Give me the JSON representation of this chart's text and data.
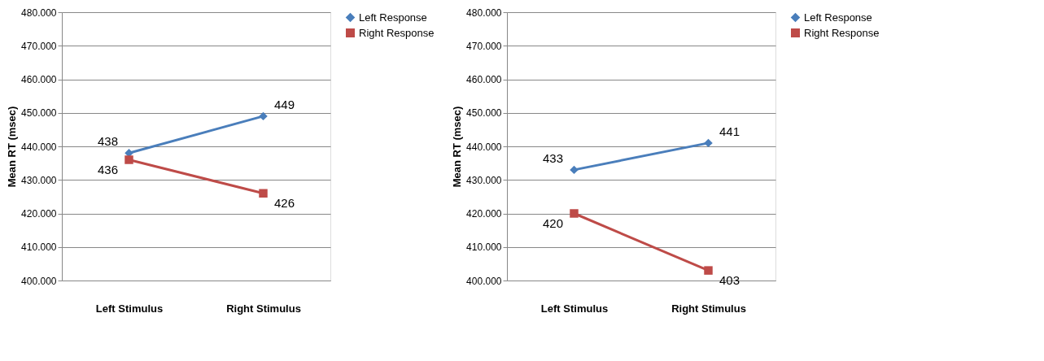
{
  "chart_data": [
    {
      "type": "line",
      "ylabel": "Mean RT (msec)",
      "categories": [
        "Left Stimulus",
        "Right Stimulus"
      ],
      "series": [
        {
          "name": "Left Response",
          "color": "#4a7ebb",
          "marker": "diamond",
          "values": [
            438,
            449
          ]
        },
        {
          "name": "Right Response",
          "color": "#be4b48",
          "marker": "square",
          "values": [
            436,
            426
          ]
        }
      ],
      "ylim": [
        400,
        480
      ],
      "yticks": [
        {
          "value": 400,
          "label": "400.000"
        },
        {
          "value": 410,
          "label": "410.000"
        },
        {
          "value": 420,
          "label": "420.000"
        },
        {
          "value": 430,
          "label": "430.000"
        },
        {
          "value": 440,
          "label": "440.000"
        },
        {
          "value": 450,
          "label": "450.000"
        },
        {
          "value": 460,
          "label": "460.000"
        },
        {
          "value": 470,
          "label": "470.000"
        },
        {
          "value": 480,
          "label": "480.000"
        }
      ],
      "grid": "y",
      "legend": "right",
      "data_labels": true
    },
    {
      "type": "line",
      "ylabel": "Mean RT (msec)",
      "categories": [
        "Left Stimulus",
        "Right Stimulus"
      ],
      "series": [
        {
          "name": "Left Response",
          "color": "#4a7ebb",
          "marker": "diamond",
          "values": [
            433,
            441
          ]
        },
        {
          "name": "Right Response",
          "color": "#be4b48",
          "marker": "square",
          "values": [
            420,
            403
          ]
        }
      ],
      "ylim": [
        400,
        480
      ],
      "yticks": [
        {
          "value": 400,
          "label": "400.000"
        },
        {
          "value": 410,
          "label": "410.000"
        },
        {
          "value": 420,
          "label": "420.000"
        },
        {
          "value": 430,
          "label": "430.000"
        },
        {
          "value": 440,
          "label": "440.000"
        },
        {
          "value": 450,
          "label": "450.000"
        },
        {
          "value": 460,
          "label": "460.000"
        },
        {
          "value": 470,
          "label": "470.000"
        },
        {
          "value": 480,
          "label": "480.000"
        }
      ],
      "grid": "y",
      "legend": "right",
      "data_labels": true
    }
  ]
}
